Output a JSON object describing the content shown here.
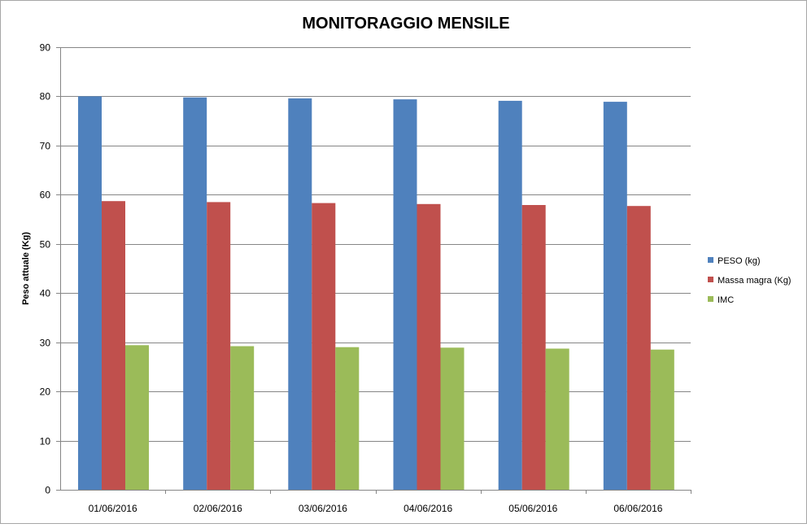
{
  "chart_data": {
    "type": "bar",
    "title": "MONITORAGGIO MENSILE",
    "xlabel": "",
    "ylabel": "Peso attuale (Kg)",
    "ylim": [
      0,
      90
    ],
    "yticks": [
      0,
      10,
      20,
      30,
      40,
      50,
      60,
      70,
      80,
      90
    ],
    "categories": [
      "01/06/2016",
      "02/06/2016",
      "03/06/2016",
      "04/06/2016",
      "05/06/2016",
      "06/06/2016"
    ],
    "series": [
      {
        "name": "PESO (kg)",
        "color": "#4f81bd",
        "values": [
          80,
          79.8,
          79.6,
          79.4,
          79.1,
          78.9
        ]
      },
      {
        "name": "Massa magra (Kg)",
        "color": "#c0504d",
        "values": [
          58.7,
          58.5,
          58.3,
          58.1,
          57.9,
          57.7
        ]
      },
      {
        "name": "IMC",
        "color": "#9bbb59",
        "values": [
          29.4,
          29.2,
          29.0,
          28.9,
          28.7,
          28.5
        ]
      }
    ],
    "grid": true,
    "legend_position": "right"
  },
  "colors": {
    "gridline": "#868686",
    "axis": "#868686",
    "frame": "#a6a6a6"
  }
}
